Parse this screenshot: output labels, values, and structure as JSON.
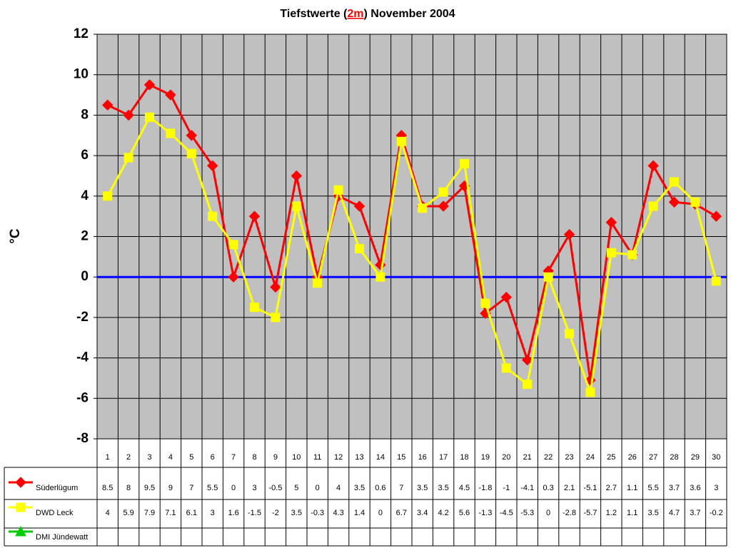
{
  "chart_data": {
    "type": "line",
    "title": [
      "Tiefstwerte (",
      "2m",
      ") November 2004"
    ],
    "title_highlight_color": "#ff0000",
    "y_label": "°C",
    "categories": [
      1,
      2,
      3,
      4,
      5,
      6,
      7,
      8,
      9,
      10,
      11,
      12,
      13,
      14,
      15,
      16,
      17,
      18,
      19,
      20,
      21,
      22,
      23,
      24,
      25,
      26,
      27,
      28,
      29,
      30
    ],
    "series": [
      {
        "name": "Süderlügum",
        "color": "#ff0000",
        "marker": "diamond",
        "values": [
          8.5,
          8,
          9.5,
          9,
          7,
          5.5,
          0,
          3,
          -0.5,
          5,
          0,
          4,
          3.5,
          0.6,
          7,
          3.5,
          3.5,
          4.5,
          -1.8,
          -1,
          -4.1,
          0.3,
          2.1,
          -5.1,
          2.7,
          1.1,
          5.5,
          3.7,
          3.6,
          3
        ]
      },
      {
        "name": "DWD Leck",
        "color": "#ffff00",
        "marker": "square",
        "values": [
          4,
          5.9,
          7.9,
          7.1,
          6.1,
          3,
          1.6,
          -1.5,
          -2,
          3.5,
          -0.3,
          4.3,
          1.4,
          0,
          6.7,
          3.4,
          4.2,
          5.6,
          -1.3,
          -4.5,
          -5.3,
          0,
          -2.8,
          -5.7,
          1.2,
          1.1,
          3.5,
          4.7,
          3.7,
          -0.2
        ]
      },
      {
        "name": "DMI Jündewatt",
        "color": "#00cc00",
        "marker": "triangle",
        "values": [
          null,
          null,
          null,
          null,
          null,
          null,
          null,
          null,
          null,
          null,
          null,
          null,
          null,
          null,
          null,
          null,
          null,
          null,
          null,
          null,
          null,
          null,
          null,
          null,
          null,
          null,
          null,
          null,
          null,
          null
        ]
      }
    ],
    "ylim": [
      -8,
      12
    ],
    "yticks": [
      -8,
      -6,
      -4,
      -2,
      0,
      2,
      4,
      6,
      8,
      10,
      12
    ],
    "grid": true,
    "plot_background": "#c0c0c0",
    "zero_line_color": "#0000ff",
    "data_table": true
  }
}
